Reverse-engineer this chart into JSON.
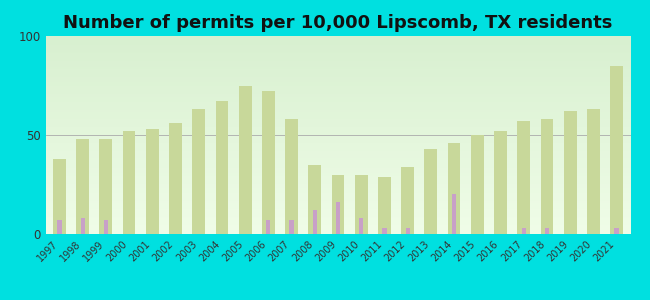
{
  "title": "Number of permits per 10,000 Lipscomb, TX residents",
  "years": [
    1997,
    1998,
    1999,
    2000,
    2001,
    2002,
    2003,
    2004,
    2005,
    2006,
    2007,
    2008,
    2009,
    2010,
    2011,
    2012,
    2013,
    2014,
    2015,
    2016,
    2017,
    2018,
    2019,
    2020,
    2021
  ],
  "texas_avg": [
    38,
    48,
    48,
    52,
    53,
    56,
    63,
    67,
    75,
    72,
    58,
    35,
    30,
    30,
    29,
    34,
    43,
    46,
    50,
    52,
    57,
    58,
    62,
    63,
    85
  ],
  "lipscomb": [
    7,
    8,
    7,
    0,
    0,
    0,
    0,
    0,
    0,
    7,
    7,
    12,
    16,
    8,
    3,
    3,
    0,
    20,
    0,
    0,
    3,
    3,
    0,
    0,
    3
  ],
  "texas_color": "#c8d89a",
  "lipscomb_color": "#c8a0c8",
  "outer_background": "#00e0e0",
  "ylim": [
    0,
    100
  ],
  "yticks": [
    0,
    50,
    100
  ],
  "title_fontsize": 13,
  "texas_bar_width": 0.55,
  "lipscomb_bar_width": 0.18
}
